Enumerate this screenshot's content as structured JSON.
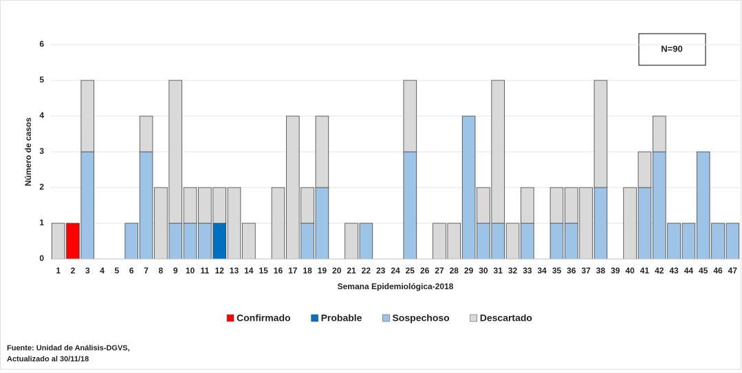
{
  "chart_data": {
    "type": "stacked_bar",
    "annotation": "N=90",
    "x_label": "Semana Epidemiológica-2018",
    "y_label": "Número de casos",
    "categories": [
      "1",
      "2",
      "3",
      "4",
      "5",
      "6",
      "7",
      "8",
      "9",
      "10",
      "11",
      "12",
      "13",
      "14",
      "15",
      "16",
      "17",
      "18",
      "19",
      "20",
      "21",
      "22",
      "23",
      "24",
      "25",
      "26",
      "27",
      "28",
      "29",
      "30",
      "31",
      "32",
      "33",
      "34",
      "35",
      "36",
      "37",
      "38",
      "39",
      "40",
      "41",
      "42",
      "43",
      "44",
      "45",
      "46",
      "47"
    ],
    "series": [
      {
        "name": "Confirmado",
        "color": "#ff0000",
        "values": [
          0,
          1,
          0,
          0,
          0,
          0,
          0,
          0,
          0,
          0,
          0,
          0,
          0,
          0,
          0,
          0,
          0,
          0,
          0,
          0,
          0,
          0,
          0,
          0,
          0,
          0,
          0,
          0,
          0,
          0,
          0,
          0,
          0,
          0,
          0,
          0,
          0,
          0,
          0,
          0,
          0,
          0,
          0,
          0,
          0,
          0,
          0
        ]
      },
      {
        "name": "Probable",
        "color": "#0070c0",
        "values": [
          0,
          0,
          0,
          0,
          0,
          0,
          0,
          0,
          0,
          0,
          0,
          1,
          0,
          0,
          0,
          0,
          0,
          0,
          0,
          0,
          0,
          0,
          0,
          0,
          0,
          0,
          0,
          0,
          0,
          0,
          0,
          0,
          0,
          0,
          0,
          0,
          0,
          0,
          0,
          0,
          0,
          0,
          0,
          0,
          0,
          0,
          0
        ]
      },
      {
        "name": "Sospechoso",
        "color": "#9dc3e6",
        "values": [
          0,
          0,
          3,
          0,
          0,
          1,
          3,
          0,
          1,
          1,
          1,
          0,
          0,
          0,
          0,
          0,
          0,
          1,
          2,
          0,
          0,
          1,
          0,
          0,
          3,
          0,
          0,
          0,
          4,
          1,
          1,
          0,
          1,
          0,
          1,
          1,
          0,
          2,
          0,
          0,
          2,
          3,
          1,
          1,
          3,
          1,
          1
        ]
      },
      {
        "name": "Descartado",
        "color": "#d9d9d9",
        "values": [
          1,
          0,
          2,
          0,
          0,
          0,
          1,
          2,
          4,
          1,
          1,
          1,
          2,
          1,
          0,
          2,
          4,
          1,
          2,
          0,
          1,
          0,
          0,
          0,
          2,
          0,
          1,
          1,
          0,
          1,
          4,
          1,
          1,
          0,
          1,
          1,
          2,
          3,
          0,
          2,
          1,
          1,
          0,
          0,
          0,
          0,
          0
        ]
      }
    ],
    "ylim": [
      0,
      6
    ],
    "yticks": [
      0,
      1,
      2,
      3,
      4,
      5,
      6
    ],
    "grid": true,
    "source": [
      "Fuente: Unidad de Análisis-DGVS,",
      "Actualizado al 30/11/18"
    ]
  }
}
